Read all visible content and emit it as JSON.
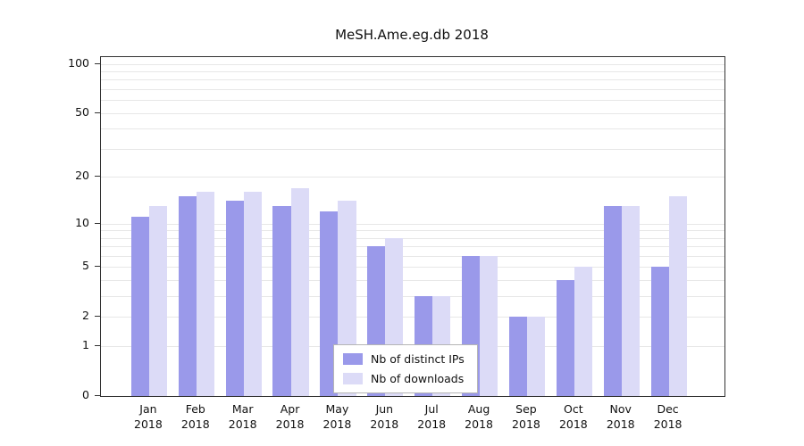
{
  "colors": {
    "bars": [
      "#9a99ea",
      "#dcdbf7"
    ],
    "grid": "#e7e7e7",
    "axis": "#333333",
    "text": "#111111"
  },
  "chart_data": {
    "type": "bar",
    "title": "MeSH.Ame.eg.db 2018",
    "categories": [
      "Jan 2018",
      "Feb 2018",
      "Mar 2018",
      "Apr 2018",
      "May 2018",
      "Jun 2018",
      "Jul 2018",
      "Aug 2018",
      "Sep 2018",
      "Oct 2018",
      "Nov 2018",
      "Dec 2018"
    ],
    "series": [
      {
        "name": "Nb of distinct IPs",
        "values": [
          11,
          15,
          14,
          13,
          12,
          7,
          3,
          6,
          2,
          4,
          13,
          5
        ]
      },
      {
        "name": "Nb of downloads",
        "values": [
          13,
          16,
          16,
          17,
          14,
          8,
          3,
          6,
          2,
          5,
          13,
          15
        ]
      }
    ],
    "xlabel": "",
    "ylabel": "",
    "yticks": [
      0,
      1,
      2,
      5,
      10,
      20,
      50,
      100
    ],
    "grid_values": [
      1,
      2,
      3,
      4,
      5,
      6,
      7,
      8,
      9,
      10,
      20,
      30,
      40,
      50,
      60,
      70,
      80,
      90,
      100
    ],
    "ylim": [
      0,
      110
    ],
    "scale": "log1p",
    "grid": true,
    "legend_position": "inside-bottom-center"
  }
}
